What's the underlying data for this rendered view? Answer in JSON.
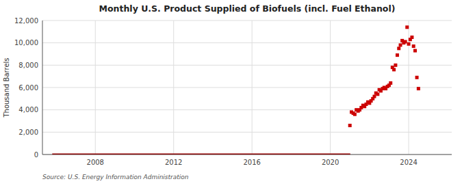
{
  "chart_data": {
    "type": "scatter",
    "title": "Monthly U.S. Product Supplied of Biofuels (incl. Fuel Ethanol)",
    "ylabel": "Thousand Barrels",
    "source": "Source: U.S. Energy Information Administration",
    "xlim": [
      2005.3,
      2026.2
    ],
    "xticks": [
      2008,
      2012,
      2016,
      2020,
      2024
    ],
    "ylim": [
      0,
      12000
    ],
    "yticks": [
      0,
      {
        "value": 2000,
        "label": "2,000"
      },
      {
        "value": 4000,
        "label": "4,000"
      },
      {
        "value": 6000,
        "label": "6,000"
      },
      {
        "value": 8000,
        "label": "8,000"
      },
      {
        "value": 10000,
        "label": "10,000"
      },
      {
        "value": 12000,
        "label": "12,000"
      }
    ],
    "grid": true,
    "series": [
      {
        "type": "line",
        "color": "#8b0000",
        "x": [
          2005.8,
          2021.02
        ],
        "values": [
          25,
          25
        ]
      },
      {
        "type": "scatter",
        "color": "#cc0000",
        "marker": "square",
        "x": [
          2021.0,
          2021.08,
          2021.17,
          2021.25,
          2021.33,
          2021.42,
          2021.5,
          2021.58,
          2021.67,
          2021.75,
          2021.83,
          2021.92,
          2022.0,
          2022.08,
          2022.17,
          2022.25,
          2022.33,
          2022.42,
          2022.5,
          2022.58,
          2022.67,
          2022.75,
          2022.83,
          2022.92,
          2023.0,
          2023.08,
          2023.17,
          2023.25,
          2023.33,
          2023.42,
          2023.5,
          2023.58,
          2023.67,
          2023.75,
          2023.83,
          2023.92,
          2024.0,
          2024.08,
          2024.17,
          2024.25,
          2024.33,
          2024.42,
          2024.5
        ],
        "values": [
          2600,
          3800,
          3700,
          3600,
          4000,
          3900,
          4000,
          4200,
          4400,
          4300,
          4500,
          4700,
          4600,
          4800,
          5000,
          5200,
          5500,
          5400,
          5800,
          5700,
          5900,
          6000,
          5900,
          6100,
          6200,
          6400,
          7800,
          7600,
          8000,
          8900,
          9500,
          9800,
          10200,
          10000,
          10100,
          11400,
          9900,
          10300,
          10500,
          9700,
          9300,
          6900,
          5900
        ]
      }
    ]
  }
}
